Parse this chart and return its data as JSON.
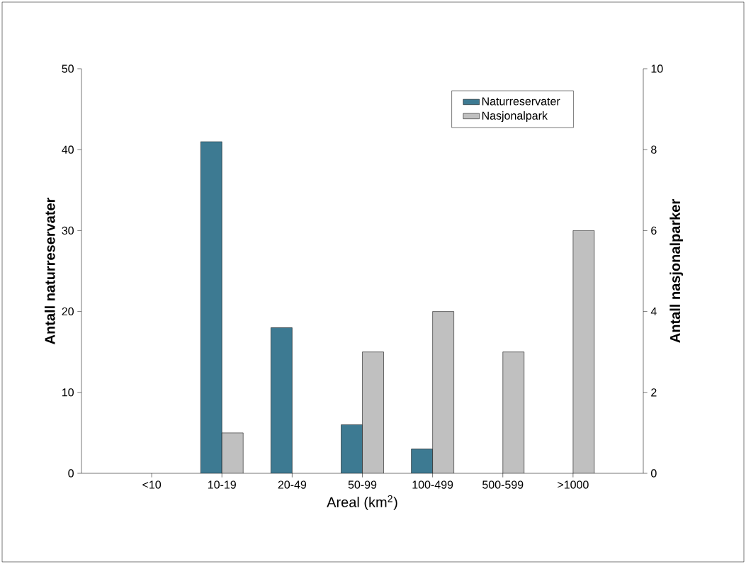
{
  "chart_data": {
    "type": "bar",
    "xlabel": "Areal (km$^{2}$)",
    "ylabel": "Antall naturreservater",
    "y2label": "Antall nasjonalparker",
    "categories": [
      "<10",
      "10-19",
      "20-49",
      "50-99",
      "100-499",
      "500-599",
      ">1000"
    ],
    "series": [
      {
        "name": "Naturreservater",
        "color": "#3d7a92",
        "values": [
          null,
          41,
          18,
          6,
          3,
          null,
          null
        ]
      },
      {
        "name": "Nasjonalpark",
        "color": "#c0c0c0",
        "axis": "y2",
        "values": [
          null,
          1,
          null,
          3,
          4,
          3,
          6
        ]
      }
    ],
    "ylim": [
      0,
      50
    ],
    "yticks": [
      0,
      10,
      20,
      30,
      40,
      50
    ],
    "y2lim": [
      0,
      10
    ],
    "y2ticks": [
      0,
      2,
      4,
      6,
      8,
      10
    ],
    "legend": "top right"
  }
}
